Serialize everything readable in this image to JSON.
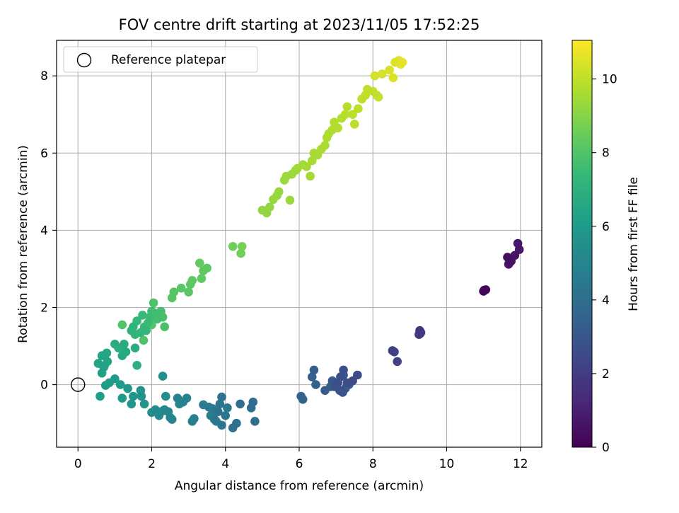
{
  "chart_data": {
    "type": "scatter",
    "title": "FOV centre drift starting at 2023/11/05 17:52:25",
    "xlabel": "Angular distance from reference (arcmin)",
    "ylabel": "Rotation from reference (arcmin)",
    "xlim": [
      -0.58,
      12.58
    ],
    "ylim": [
      -1.62,
      8.92
    ],
    "xticks": [
      0,
      2,
      4,
      6,
      8,
      10,
      12
    ],
    "yticks": [
      0,
      2,
      4,
      6,
      8
    ],
    "grid": true,
    "legend": {
      "placement": "top-left",
      "entries": [
        {
          "label": "Reference platepar",
          "marker": "open-circle"
        }
      ]
    },
    "reference_point": {
      "x": 0,
      "y": 0
    },
    "colorbar": {
      "label": "Hours from first FF file",
      "range": [
        0,
        11.05
      ],
      "ticks": [
        0,
        2,
        4,
        6,
        8,
        10
      ],
      "colormap": "viridis",
      "stops": [
        "#440154",
        "#482878",
        "#3e4989",
        "#31688e",
        "#26828e",
        "#1f9e89",
        "#35b779",
        "#6ece58",
        "#b5de2b",
        "#fde725"
      ]
    },
    "points": [
      [
        11.0,
        2.42,
        0.2
      ],
      [
        11.06,
        2.46,
        0.25
      ],
      [
        11.02,
        2.45,
        0.3
      ],
      [
        11.65,
        3.3,
        0.45
      ],
      [
        11.7,
        3.15,
        0.5
      ],
      [
        11.75,
        3.2,
        0.55
      ],
      [
        11.85,
        3.35,
        0.6
      ],
      [
        11.93,
        3.66,
        0.65
      ],
      [
        11.97,
        3.5,
        0.7
      ],
      [
        11.68,
        3.12,
        0.75
      ],
      [
        9.25,
        1.3,
        1.75
      ],
      [
        9.27,
        1.4,
        1.8
      ],
      [
        9.3,
        1.35,
        1.85
      ],
      [
        9.28,
        1.32,
        1.9
      ],
      [
        8.53,
        0.88,
        2.1
      ],
      [
        8.58,
        0.85,
        2.15
      ],
      [
        8.66,
        0.6,
        2.2
      ],
      [
        7.58,
        0.25,
        2.5
      ],
      [
        7.45,
        0.1,
        2.55
      ],
      [
        7.3,
        0.05,
        2.6
      ],
      [
        7.2,
        0.38,
        2.65
      ],
      [
        7.12,
        0.2,
        2.7
      ],
      [
        7.05,
        0.05,
        2.75
      ],
      [
        7.0,
        -0.05,
        2.8
      ],
      [
        7.1,
        -0.15,
        2.85
      ],
      [
        7.18,
        -0.2,
        2.9
      ],
      [
        6.95,
        -0.05,
        2.95
      ],
      [
        6.9,
        0.1,
        3.0
      ],
      [
        7.2,
        0.25,
        3.05
      ],
      [
        7.25,
        -0.1,
        3.1
      ],
      [
        7.35,
        0.0,
        3.15
      ],
      [
        6.7,
        -0.15,
        3.2
      ],
      [
        6.85,
        -0.05,
        3.25
      ],
      [
        6.4,
        0.38,
        3.3
      ],
      [
        6.35,
        0.2,
        3.35
      ],
      [
        6.45,
        0.0,
        3.4
      ],
      [
        6.05,
        -0.3,
        3.5
      ],
      [
        6.1,
        -0.38,
        3.55
      ],
      [
        4.75,
        -0.45,
        3.85
      ],
      [
        4.7,
        -0.6,
        3.9
      ],
      [
        4.4,
        -0.5,
        3.95
      ],
      [
        4.8,
        -0.95,
        4.0
      ],
      [
        4.2,
        -1.12,
        4.05
      ],
      [
        4.3,
        -1.0,
        4.1
      ],
      [
        3.9,
        -0.32,
        4.15
      ],
      [
        3.85,
        -0.5,
        4.2
      ],
      [
        3.8,
        -0.7,
        4.25
      ],
      [
        3.7,
        -0.9,
        4.3
      ],
      [
        3.9,
        -1.05,
        4.35
      ],
      [
        4.0,
        -0.8,
        4.4
      ],
      [
        4.05,
        -0.6,
        4.45
      ],
      [
        3.65,
        -0.62,
        4.5
      ],
      [
        3.55,
        -0.58,
        4.55
      ],
      [
        3.4,
        -0.52,
        4.6
      ],
      [
        3.6,
        -0.8,
        4.65
      ],
      [
        3.75,
        -0.95,
        4.7
      ],
      [
        3.1,
        -0.95,
        4.75
      ],
      [
        3.15,
        -0.88,
        4.8
      ],
      [
        2.95,
        -0.35,
        4.85
      ],
      [
        2.85,
        -0.45,
        4.9
      ],
      [
        2.7,
        -0.35,
        4.95
      ],
      [
        2.75,
        -0.5,
        5.0
      ],
      [
        2.45,
        -0.7,
        5.05
      ],
      [
        2.55,
        -0.9,
        5.1
      ],
      [
        2.5,
        -0.85,
        5.15
      ],
      [
        2.35,
        -0.65,
        5.2
      ],
      [
        2.2,
        -0.8,
        5.25
      ],
      [
        2.1,
        -0.65,
        5.3
      ],
      [
        2.0,
        -0.72,
        5.35
      ],
      [
        2.3,
        -0.68,
        5.4
      ],
      [
        2.38,
        -0.3,
        5.45
      ],
      [
        2.3,
        0.22,
        5.5
      ],
      [
        1.72,
        -0.3,
        5.6
      ],
      [
        1.8,
        -0.5,
        5.65
      ],
      [
        1.7,
        -0.15,
        5.7
      ],
      [
        1.5,
        -0.3,
        5.75
      ],
      [
        1.45,
        -0.5,
        5.8
      ],
      [
        1.35,
        -0.1,
        5.85
      ],
      [
        1.2,
        -0.35,
        5.9
      ],
      [
        1.15,
        0.0,
        5.95
      ],
      [
        1.0,
        0.15,
        6.0
      ],
      [
        0.85,
        0.05,
        6.05
      ],
      [
        0.75,
        -0.02,
        6.1
      ],
      [
        0.6,
        -0.3,
        6.2
      ],
      [
        0.65,
        0.3,
        6.25
      ],
      [
        0.7,
        0.45,
        6.3
      ],
      [
        0.55,
        0.55,
        6.35
      ],
      [
        0.8,
        0.6,
        6.4
      ],
      [
        0.65,
        0.75,
        6.45
      ],
      [
        0.78,
        0.82,
        6.5
      ],
      [
        0.72,
        0.5,
        6.55
      ],
      [
        1.2,
        0.75,
        6.65
      ],
      [
        1.3,
        0.85,
        6.7
      ],
      [
        1.25,
        1.05,
        6.75
      ],
      [
        1.0,
        1.05,
        6.8
      ],
      [
        1.1,
        0.95,
        6.85
      ],
      [
        1.55,
        0.95,
        6.9
      ],
      [
        1.6,
        0.5,
        6.95
      ],
      [
        1.45,
        1.4,
        7.1
      ],
      [
        1.5,
        1.5,
        7.15
      ],
      [
        1.55,
        1.3,
        7.2
      ],
      [
        1.7,
        1.35,
        7.25
      ],
      [
        1.85,
        1.4,
        7.3
      ],
      [
        1.6,
        1.65,
        7.35
      ],
      [
        1.75,
        1.8,
        7.4
      ],
      [
        1.9,
        1.6,
        7.45
      ],
      [
        1.8,
        1.5,
        7.5
      ],
      [
        1.95,
        1.75,
        7.55
      ],
      [
        2.0,
        1.9,
        7.6
      ],
      [
        2.1,
        1.85,
        7.65
      ],
      [
        2.15,
        1.7,
        7.7
      ],
      [
        2.25,
        1.9,
        7.75
      ],
      [
        2.3,
        1.75,
        7.8
      ],
      [
        2.35,
        1.5,
        7.85
      ],
      [
        2.05,
        2.12,
        7.9
      ],
      [
        1.78,
        1.15,
        7.95
      ],
      [
        1.2,
        1.55,
        8.0
      ],
      [
        2.0,
        1.55,
        8.05
      ],
      [
        2.55,
        2.25,
        8.1
      ],
      [
        2.6,
        2.4,
        8.12
      ],
      [
        2.8,
        2.5,
        8.15
      ],
      [
        3.0,
        2.4,
        8.18
      ],
      [
        3.05,
        2.6,
        8.2
      ],
      [
        3.1,
        2.7,
        8.22
      ],
      [
        3.35,
        2.75,
        8.25
      ],
      [
        3.4,
        2.95,
        8.27
      ],
      [
        3.5,
        3.02,
        8.3
      ],
      [
        3.3,
        3.15,
        8.32
      ],
      [
        4.2,
        3.58,
        8.6
      ],
      [
        4.42,
        3.4,
        8.65
      ],
      [
        4.45,
        3.58,
        8.7
      ],
      [
        5.0,
        4.52,
        9.2
      ],
      [
        5.12,
        4.45,
        9.22
      ],
      [
        5.2,
        4.6,
        9.25
      ],
      [
        5.3,
        4.8,
        9.28
      ],
      [
        5.4,
        4.9,
        9.3
      ],
      [
        5.45,
        5.0,
        9.32
      ],
      [
        5.75,
        4.78,
        9.35
      ],
      [
        5.6,
        5.3,
        9.38
      ],
      [
        5.65,
        5.4,
        9.4
      ],
      [
        5.8,
        5.45,
        9.42
      ],
      [
        5.9,
        5.55,
        9.45
      ],
      [
        5.95,
        5.6,
        9.47
      ],
      [
        6.1,
        5.7,
        9.5
      ],
      [
        6.2,
        5.65,
        9.52
      ],
      [
        6.3,
        5.4,
        9.55
      ],
      [
        6.35,
        5.8,
        9.58
      ],
      [
        6.4,
        6.0,
        9.6
      ],
      [
        6.5,
        5.95,
        9.62
      ],
      [
        6.6,
        6.1,
        9.65
      ],
      [
        6.7,
        6.2,
        9.68
      ],
      [
        6.75,
        6.4,
        9.7
      ],
      [
        6.8,
        6.5,
        9.72
      ],
      [
        6.9,
        6.6,
        9.75
      ],
      [
        6.95,
        6.8,
        9.78
      ],
      [
        7.05,
        6.65,
        9.8
      ],
      [
        7.15,
        6.9,
        9.82
      ],
      [
        7.25,
        7.0,
        9.85
      ],
      [
        7.3,
        7.2,
        9.88
      ],
      [
        7.45,
        7.0,
        9.9
      ],
      [
        7.5,
        6.75,
        9.92
      ],
      [
        7.6,
        7.15,
        9.95
      ],
      [
        7.7,
        7.4,
        9.98
      ],
      [
        7.8,
        7.5,
        10.0
      ],
      [
        7.85,
        7.65,
        10.02
      ],
      [
        8.0,
        7.6,
        10.05
      ],
      [
        8.1,
        7.5,
        10.08
      ],
      [
        8.15,
        7.45,
        10.1
      ],
      [
        8.05,
        8.0,
        10.3
      ],
      [
        8.25,
        8.05,
        10.35
      ],
      [
        8.45,
        8.15,
        10.4
      ],
      [
        8.55,
        7.95,
        10.45
      ],
      [
        8.6,
        8.35,
        10.5
      ],
      [
        8.7,
        8.4,
        10.55
      ],
      [
        8.75,
        8.3,
        10.6
      ],
      [
        8.8,
        8.35,
        10.65
      ]
    ]
  }
}
